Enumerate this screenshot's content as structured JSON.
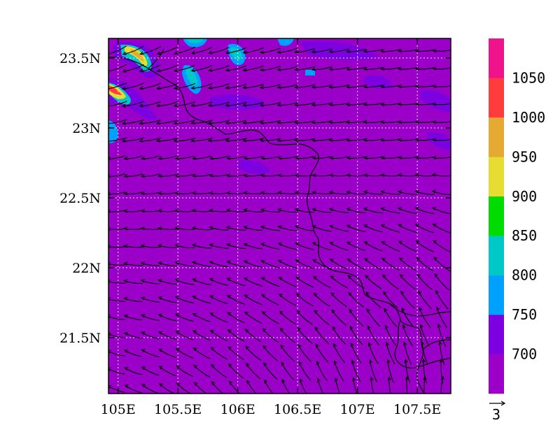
{
  "map": {
    "lon_ticks": [
      "105E",
      "105.5E",
      "106E",
      "106.5E",
      "107E",
      "107.5E"
    ],
    "lat_ticks": [
      "23.5N",
      "23N",
      "22.5N",
      "22N",
      "21.5N"
    ],
    "lon_values": [
      105,
      105.5,
      106,
      106.5,
      107,
      107.5
    ],
    "lat_values": [
      23.5,
      23,
      22.5,
      22,
      21.5
    ],
    "lon_range": [
      104.92,
      107.78
    ],
    "lat_range": [
      21.1,
      23.64
    ],
    "grid": "dotted",
    "field_base_color": "#9a00c8"
  },
  "colorbar": {
    "levels": [
      "700",
      "750",
      "800",
      "850",
      "900",
      "950",
      "1000",
      "1050"
    ],
    "colors": [
      "#9c00c8",
      "#7d00e0",
      "#00a0ff",
      "#00c8c8",
      "#00dc00",
      "#e6dc32",
      "#e6aa32",
      "#ff3c3c",
      "#f0148c"
    ]
  },
  "vector_reference": {
    "label": "3"
  }
}
